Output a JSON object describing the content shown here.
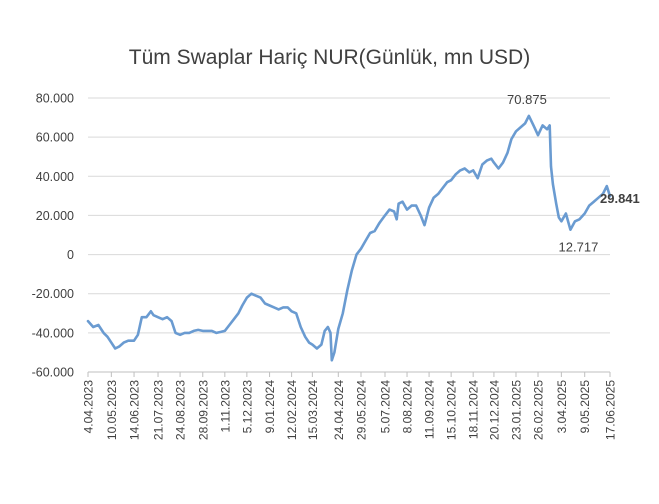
{
  "chart_data": {
    "type": "line",
    "title": "Tüm Swaplar Hariç NUR(Günlük, mn USD)",
    "xlabel": "",
    "ylabel": "",
    "ylim": [
      -60000,
      80000
    ],
    "y_ticks": [
      80000,
      60000,
      40000,
      20000,
      0,
      -20000,
      -40000,
      -60000
    ],
    "y_tick_labels": [
      "80.000",
      "60.000",
      "40.000",
      "20.000",
      "0",
      "-20.000",
      "-40.000",
      "-60.000"
    ],
    "x_tick_labels": [
      "4.04.2023",
      "10.05.2023",
      "14.06.2023",
      "21.07.2023",
      "24.08.2023",
      "28.09.2023",
      "1.11.2023",
      "5.12.2023",
      "9.01.2024",
      "12.02.2024",
      "15.03.2024",
      "24.04.2024",
      "29.05.2024",
      "5.07.2024",
      "8.08.2024",
      "11.09.2024",
      "15.10.2024",
      "18.11.2024",
      "20.12.2024",
      "23.01.2025",
      "26.02.2025",
      "3.04.2025",
      "9.05.2025",
      "17.06.2025"
    ],
    "grid": "horizontal",
    "line_color": "#6a9bd1",
    "series": [
      {
        "points": [
          [
            "4.04.2023",
            -34000
          ],
          [
            "12.04.2023",
            -37000
          ],
          [
            "20.04.2023",
            -36000
          ],
          [
            "28.04.2023",
            -40000
          ],
          [
            "4.05.2023",
            -42000
          ],
          [
            "10.05.2023",
            -45000
          ],
          [
            "16.05.2023",
            -48000
          ],
          [
            "22.05.2023",
            -47000
          ],
          [
            "29.05.2023",
            -45000
          ],
          [
            "5.06.2023",
            -44000
          ],
          [
            "14.06.2023",
            -44000
          ],
          [
            "20.06.2023",
            -41000
          ],
          [
            "26.06.2023",
            -32000
          ],
          [
            "3.07.2023",
            -32000
          ],
          [
            "10.07.2023",
            -29000
          ],
          [
            "14.07.2023",
            -31000
          ],
          [
            "21.07.2023",
            -32000
          ],
          [
            "28.07.2023",
            -33000
          ],
          [
            "4.08.2023",
            -32000
          ],
          [
            "11.08.2023",
            -34000
          ],
          [
            "17.08.2023",
            -40000
          ],
          [
            "24.08.2023",
            -41000
          ],
          [
            "31.08.2023",
            -40000
          ],
          [
            "7.09.2023",
            -40000
          ],
          [
            "14.09.2023",
            -39000
          ],
          [
            "21.09.2023",
            -38500
          ],
          [
            "28.09.2023",
            -39000
          ],
          [
            "5.10.2023",
            -39000
          ],
          [
            "12.10.2023",
            -39000
          ],
          [
            "19.10.2023",
            -40000
          ],
          [
            "26.10.2023",
            -39500
          ],
          [
            "1.11.2023",
            -39000
          ],
          [
            "8.11.2023",
            -36000
          ],
          [
            "15.11.2023",
            -33000
          ],
          [
            "22.11.2023",
            -30000
          ],
          [
            "28.11.2023",
            -26000
          ],
          [
            "5.12.2023",
            -22000
          ],
          [
            "12.12.2023",
            -20000
          ],
          [
            "19.12.2023",
            -21000
          ],
          [
            "26.12.2023",
            -22000
          ],
          [
            "2.01.2024",
            -25000
          ],
          [
            "9.01.2024",
            -26000
          ],
          [
            "16.01.2024",
            -27000
          ],
          [
            "23.01.2024",
            -28000
          ],
          [
            "30.01.2024",
            -27000
          ],
          [
            "6.02.2024",
            -27000
          ],
          [
            "12.02.2024",
            -29000
          ],
          [
            "19.02.2024",
            -30000
          ],
          [
            "26.02.2024",
            -37000
          ],
          [
            "4.03.2024",
            -42000
          ],
          [
            "10.03.2024",
            -45000
          ],
          [
            "15.03.2024",
            -46000
          ],
          [
            "22.03.2024",
            -48000
          ],
          [
            "29.03.2024",
            -46000
          ],
          [
            "3.04.2024",
            -39000
          ],
          [
            "8.04.2024",
            -37000
          ],
          [
            "12.04.2024",
            -40000
          ],
          [
            "14.04.2024",
            -54000
          ],
          [
            "18.04.2024",
            -50000
          ],
          [
            "24.04.2024",
            -38000
          ],
          [
            "1.05.2024",
            -30000
          ],
          [
            "8.05.2024",
            -18000
          ],
          [
            "15.05.2024",
            -8000
          ],
          [
            "22.05.2024",
            0
          ],
          [
            "29.05.2024",
            3000
          ],
          [
            "5.06.2024",
            7000
          ],
          [
            "12.06.2024",
            11000
          ],
          [
            "19.06.2024",
            12000
          ],
          [
            "26.06.2024",
            16000
          ],
          [
            "5.07.2024",
            20000
          ],
          [
            "12.07.2024",
            23000
          ],
          [
            "19.07.2024",
            22000
          ],
          [
            "23.07.2024",
            18000
          ],
          [
            "26.07.2024",
            26000
          ],
          [
            "1.08.2024",
            27000
          ],
          [
            "8.08.2024",
            23000
          ],
          [
            "15.08.2024",
            25000
          ],
          [
            "22.08.2024",
            25000
          ],
          [
            "29.08.2024",
            20000
          ],
          [
            "4.09.2024",
            15000
          ],
          [
            "11.09.2024",
            24000
          ],
          [
            "18.09.2024",
            29000
          ],
          [
            "25.09.2024",
            31000
          ],
          [
            "2.10.2024",
            34000
          ],
          [
            "9.10.2024",
            37000
          ],
          [
            "15.10.2024",
            38000
          ],
          [
            "22.10.2024",
            41000
          ],
          [
            "29.10.2024",
            43000
          ],
          [
            "5.11.2024",
            44000
          ],
          [
            "12.11.2024",
            42000
          ],
          [
            "18.11.2024",
            43000
          ],
          [
            "25.11.2024",
            39000
          ],
          [
            "2.12.2024",
            46000
          ],
          [
            "9.12.2024",
            48000
          ],
          [
            "16.12.2024",
            49000
          ],
          [
            "20.12.2024",
            47000
          ],
          [
            "27.12.2024",
            44000
          ],
          [
            "3.01.2025",
            47000
          ],
          [
            "10.01.2025",
            52000
          ],
          [
            "16.01.2025",
            59000
          ],
          [
            "23.01.2025",
            63000
          ],
          [
            "30.01.2025",
            65000
          ],
          [
            "6.02.2025",
            67000
          ],
          [
            "12.02.2025",
            70875
          ],
          [
            "19.02.2025",
            66000
          ],
          [
            "26.02.2025",
            61000
          ],
          [
            "5.03.2025",
            66000
          ],
          [
            "12.03.2025",
            64000
          ],
          [
            "16.03.2025",
            66000
          ],
          [
            "18.03.2025",
            45000
          ],
          [
            "21.03.2025",
            36000
          ],
          [
            "26.03.2025",
            26000
          ],
          [
            "30.03.2025",
            19000
          ],
          [
            "3.04.2025",
            17000
          ],
          [
            "10.04.2025",
            21000
          ],
          [
            "17.04.2025",
            12717
          ],
          [
            "24.04.2025",
            17000
          ],
          [
            "1.05.2025",
            18000
          ],
          [
            "9.05.2025",
            21000
          ],
          [
            "16.05.2025",
            25000
          ],
          [
            "23.05.2025",
            27000
          ],
          [
            "30.05.2025",
            29000
          ],
          [
            "6.06.2025",
            31000
          ],
          [
            "12.06.2025",
            35000
          ],
          [
            "17.06.2025",
            29841
          ]
        ]
      }
    ],
    "annotations": [
      {
        "text": "70.875",
        "x": "12.02.2025",
        "y": 70875,
        "bold": false
      },
      {
        "text": "12.717",
        "x": "17.04.2025",
        "y": 12717,
        "bold": false
      },
      {
        "text": "29.841",
        "x": "17.06.2025",
        "y": 29841,
        "bold": true
      }
    ]
  }
}
